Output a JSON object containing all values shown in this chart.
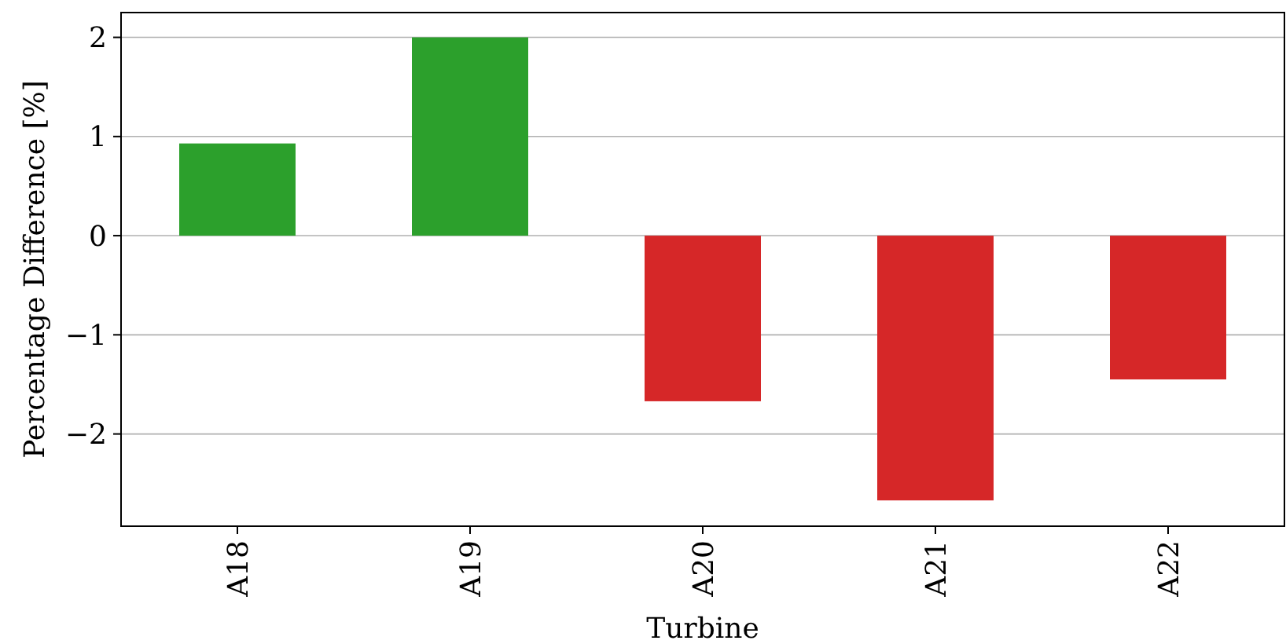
{
  "chart_data": {
    "type": "bar",
    "xlabel": "Turbine",
    "ylabel": "Percentage Difference [%]",
    "categories": [
      "A18",
      "A19",
      "A20",
      "A21",
      "A22"
    ],
    "values": [
      0.93,
      2.0,
      -1.67,
      -2.67,
      -1.45
    ],
    "colors": [
      "#2ca02c",
      "#2ca02c",
      "#d62728",
      "#d62728",
      "#d62728"
    ],
    "ylim": [
      -2.93,
      2.25
    ],
    "yticks": [
      {
        "value": -2,
        "label": "−2"
      },
      {
        "value": -1,
        "label": "−1"
      },
      0,
      1,
      2
    ],
    "grid": "y"
  }
}
